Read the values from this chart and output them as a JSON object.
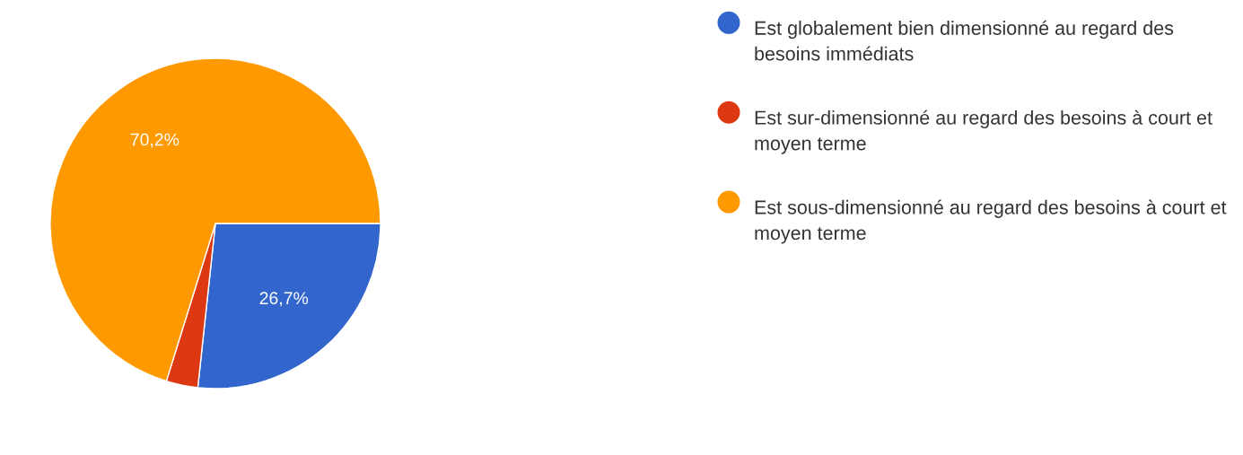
{
  "chart_data": {
    "type": "pie",
    "categories": [
      "Est globalement bien dimensionné au regard des besoins immédiats",
      "Est sur-dimensionné au regard des besoins à court et moyen terme",
      "Est sous-dimensionné au regard des besoins à court et moyen terme"
    ],
    "values": [
      26.7,
      3.1,
      70.2
    ],
    "colors": [
      "#3366cc",
      "#dc3912",
      "#ff9900"
    ],
    "value_labels": [
      "26,7%",
      null,
      "70,2%"
    ],
    "legend": "right"
  }
}
